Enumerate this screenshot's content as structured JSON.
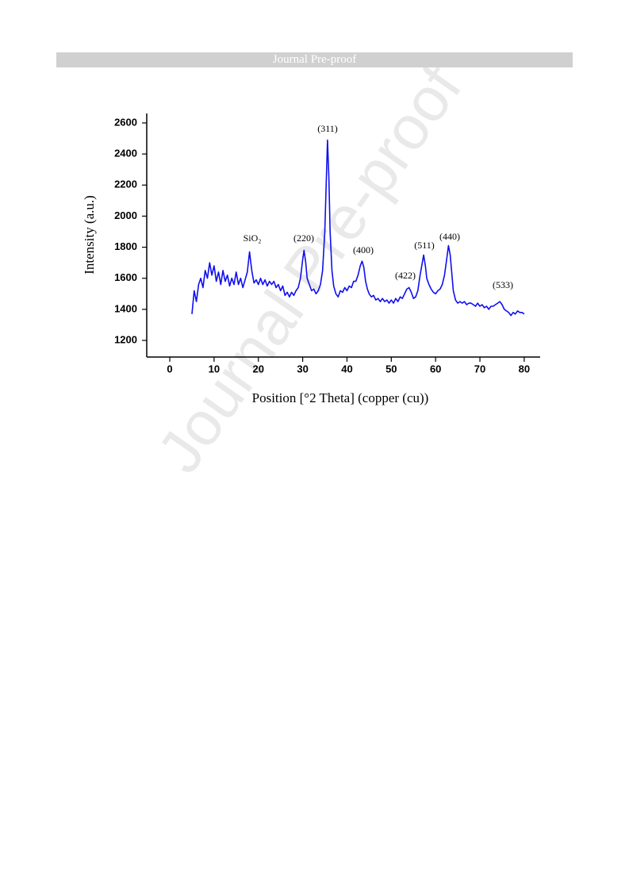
{
  "header": {
    "title": "Journal Pre-proof"
  },
  "watermark": "Journal Pre-proof",
  "chart_data": {
    "type": "line",
    "x_label": "Position [°2 Theta] (copper (cu))",
    "y_label": "Intensity (a.u.)",
    "xlim": [
      -5.2,
      83.6
    ],
    "ylim": [
      1093,
      2661
    ],
    "xticks": [
      0,
      10,
      20,
      30,
      40,
      50,
      60,
      70,
      80
    ],
    "yticks": [
      1200,
      1400,
      1600,
      1800,
      2000,
      2200,
      2400,
      2600
    ],
    "annotations": [
      "SiO₂",
      "(220)",
      "(311)",
      "(400)",
      "(422)",
      "(511)",
      "(440)",
      "(533)"
    ],
    "x": [
      5,
      5.5,
      6,
      6.5,
      7,
      7.5,
      8,
      8.5,
      9,
      9.5,
      10,
      10.5,
      11,
      11.5,
      12,
      12.5,
      13,
      13.5,
      14,
      14.5,
      15,
      15.5,
      16,
      16.5,
      17,
      17.5,
      18,
      18.5,
      19,
      19.5,
      20,
      20.5,
      21,
      21.5,
      22,
      22.5,
      23,
      23.5,
      24,
      24.5,
      25,
      25.5,
      26,
      26.5,
      27,
      27.5,
      28,
      28.5,
      29,
      29.5,
      30,
      30.3,
      30.7,
      31,
      31.5,
      32,
      32.5,
      33,
      33.5,
      34,
      34.5,
      35,
      35.3,
      35.6,
      35.9,
      36.2,
      36.6,
      37,
      37.5,
      38,
      38.5,
      39,
      39.5,
      40,
      40.5,
      41,
      41.5,
      42,
      42.5,
      43,
      43.4,
      43.8,
      44.2,
      44.6,
      45,
      45.5,
      46,
      46.5,
      47,
      47.5,
      48,
      48.5,
      49,
      49.5,
      50,
      50.5,
      51,
      51.5,
      52,
      52.5,
      53,
      53.5,
      54,
      54.5,
      55,
      55.5,
      56,
      56.5,
      57,
      57.3,
      57.7,
      58,
      58.5,
      59,
      59.5,
      60,
      60.5,
      61,
      61.5,
      62,
      62.5,
      62.9,
      63.3,
      63.7,
      64,
      64.5,
      65,
      65.5,
      66,
      66.5,
      67,
      67.5,
      68,
      68.5,
      69,
      69.5,
      70,
      70.5,
      71,
      71.5,
      72,
      72.5,
      73,
      73.5,
      74,
      74.5,
      75,
      75.5,
      76,
      76.5,
      77,
      77.5,
      78,
      78.5,
      79,
      79.5,
      80
    ],
    "series": [
      {
        "color": "#1010ee",
        "values": [
          1370,
          1520,
          1450,
          1560,
          1600,
          1540,
          1650,
          1600,
          1700,
          1620,
          1680,
          1580,
          1640,
          1560,
          1650,
          1580,
          1620,
          1550,
          1600,
          1560,
          1640,
          1560,
          1600,
          1540,
          1590,
          1640,
          1770,
          1650,
          1570,
          1590,
          1560,
          1600,
          1560,
          1590,
          1550,
          1580,
          1560,
          1580,
          1540,
          1560,
          1520,
          1550,
          1490,
          1510,
          1480,
          1510,
          1490,
          1520,
          1540,
          1600,
          1720,
          1780,
          1700,
          1600,
          1560,
          1520,
          1530,
          1500,
          1520,
          1560,
          1650,
          1900,
          2200,
          2490,
          2250,
          1900,
          1650,
          1550,
          1500,
          1480,
          1520,
          1510,
          1540,
          1520,
          1550,
          1540,
          1580,
          1580,
          1620,
          1680,
          1710,
          1670,
          1580,
          1530,
          1500,
          1480,
          1490,
          1460,
          1470,
          1450,
          1470,
          1450,
          1460,
          1440,
          1460,
          1440,
          1470,
          1450,
          1480,
          1470,
          1500,
          1530,
          1540,
          1510,
          1470,
          1480,
          1520,
          1620,
          1700,
          1750,
          1680,
          1600,
          1560,
          1530,
          1510,
          1500,
          1520,
          1530,
          1560,
          1620,
          1720,
          1810,
          1750,
          1620,
          1520,
          1460,
          1440,
          1450,
          1440,
          1450,
          1430,
          1440,
          1440,
          1430,
          1420,
          1440,
          1420,
          1430,
          1410,
          1420,
          1400,
          1420,
          1420,
          1430,
          1440,
          1450,
          1430,
          1400,
          1390,
          1380,
          1360,
          1380,
          1370,
          1390,
          1380,
          1380,
          1370
        ]
      }
    ]
  }
}
